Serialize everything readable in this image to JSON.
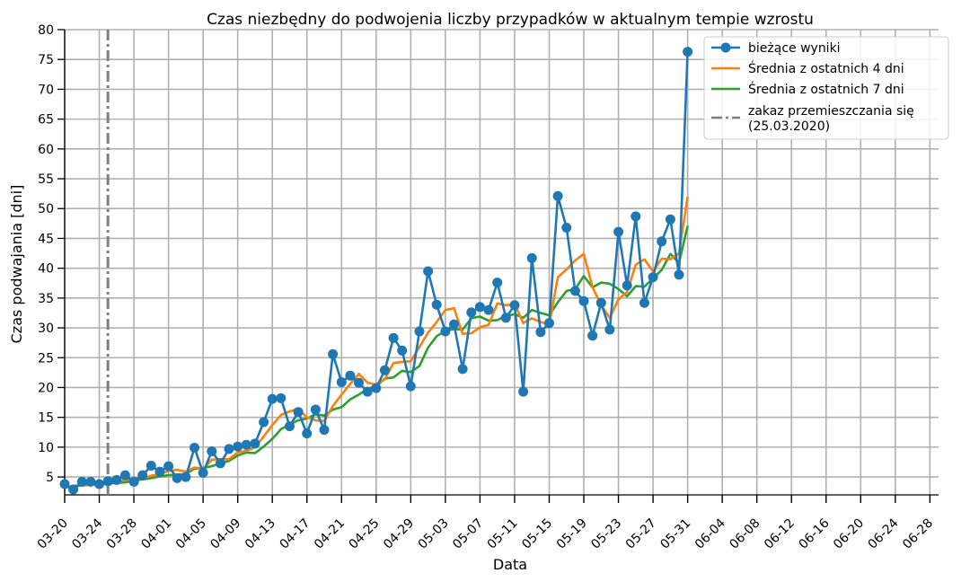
{
  "chart_data": {
    "type": "line",
    "title": "Czas niezbędny do podwojenia liczby przypadków w aktualnym tempie wzrostu",
    "xlabel": "Data",
    "ylabel": "Czas podwajania [dni]",
    "xlim": [
      "2020-03-20",
      "2020-06-29"
    ],
    "ylim": [
      2,
      80
    ],
    "yticks": [
      5,
      10,
      15,
      20,
      25,
      30,
      35,
      40,
      45,
      50,
      55,
      60,
      65,
      70,
      75,
      80
    ],
    "xtick_labels": [
      "03-20",
      "03-24",
      "03-28",
      "04-01",
      "04-05",
      "04-09",
      "04-13",
      "04-17",
      "04-21",
      "04-25",
      "04-29",
      "05-03",
      "05-07",
      "05-11",
      "05-15",
      "05-19",
      "05-23",
      "05-27",
      "05-31",
      "06-04",
      "06-08",
      "06-12",
      "06-16",
      "06-20",
      "06-24",
      "06-28"
    ],
    "grid": true,
    "legend_position": "top-right",
    "x_dates": [
      "2020-03-20",
      "2020-03-21",
      "2020-03-22",
      "2020-03-23",
      "2020-03-24",
      "2020-03-25",
      "2020-03-26",
      "2020-03-27",
      "2020-03-28",
      "2020-03-29",
      "2020-03-30",
      "2020-03-31",
      "2020-04-01",
      "2020-04-02",
      "2020-04-03",
      "2020-04-04",
      "2020-04-05",
      "2020-04-06",
      "2020-04-07",
      "2020-04-08",
      "2020-04-09",
      "2020-04-10",
      "2020-04-11",
      "2020-04-12",
      "2020-04-13",
      "2020-04-14",
      "2020-04-15",
      "2020-04-16",
      "2020-04-17",
      "2020-04-18",
      "2020-04-19",
      "2020-04-20",
      "2020-04-21",
      "2020-04-22",
      "2020-04-23",
      "2020-04-24",
      "2020-04-25",
      "2020-04-26",
      "2020-04-27",
      "2020-04-28",
      "2020-04-29",
      "2020-04-30",
      "2020-05-01",
      "2020-05-02",
      "2020-05-03",
      "2020-05-04",
      "2020-05-05",
      "2020-05-06",
      "2020-05-07",
      "2020-05-08",
      "2020-05-09",
      "2020-05-10",
      "2020-05-11",
      "2020-05-12",
      "2020-05-13",
      "2020-05-14",
      "2020-05-15",
      "2020-05-16",
      "2020-05-17",
      "2020-05-18",
      "2020-05-19",
      "2020-05-20",
      "2020-05-21",
      "2020-05-22",
      "2020-05-23",
      "2020-05-24",
      "2020-05-25",
      "2020-05-26",
      "2020-05-27",
      "2020-05-28",
      "2020-05-29",
      "2020-05-30",
      "2020-05-31"
    ],
    "series": [
      {
        "name": "bieżące wyniki",
        "color": "#1f77b4",
        "marker": "circle",
        "values": [
          3.8,
          2.9,
          4.2,
          4.2,
          3.8,
          4.3,
          4.5,
          5.3,
          4.2,
          5.3,
          6.9,
          5.9,
          6.8,
          4.8,
          5.0,
          9.9,
          5.7,
          9.3,
          7.3,
          9.7,
          10.1,
          10.4,
          10.6,
          14.2,
          18.1,
          18.2,
          13.5,
          15.9,
          12.3,
          16.3,
          12.9,
          25.6,
          20.9,
          22.0,
          20.8,
          19.3,
          19.9,
          22.9,
          28.3,
          26.2,
          20.2,
          29.4,
          39.5,
          33.9,
          29.4,
          30.6,
          23.1,
          32.6,
          33.5,
          33.0,
          37.6,
          31.7,
          33.8,
          19.3,
          41.7,
          29.3,
          30.8,
          52.1,
          46.8,
          36.2,
          34.5,
          28.7,
          34.2,
          29.7,
          46.1,
          37.1,
          48.7,
          34.2,
          38.5,
          44.5,
          48.2,
          38.9,
          76.3
        ]
      },
      {
        "name": "Średnia z ostatnich 4 dni",
        "color": "#ff7f0e",
        "values": [
          3.3,
          3.5,
          3.7,
          3.8,
          4.0,
          4.1,
          4.2,
          4.5,
          4.6,
          4.8,
          5.2,
          5.5,
          6.0,
          6.2,
          5.9,
          6.6,
          6.3,
          7.9,
          8.0,
          8.0,
          9.1,
          9.4,
          10.0,
          11.8,
          13.7,
          15.4,
          16.0,
          16.4,
          15.0,
          14.5,
          14.4,
          16.9,
          18.8,
          20.6,
          22.3,
          20.8,
          20.5,
          21.4,
          24.1,
          24.3,
          24.4,
          26.8,
          29.2,
          31.0,
          33.0,
          33.3,
          29.0,
          29.1,
          30.1,
          30.5,
          34.1,
          33.8,
          34.0,
          30.8,
          31.6,
          31.0,
          30.5,
          38.5,
          39.8,
          41.3,
          42.4,
          36.8,
          33.8,
          31.7,
          34.8,
          36.0,
          40.6,
          41.5,
          39.5,
          41.6,
          41.5,
          42.5,
          52.0
        ]
      },
      {
        "name": "Średnia z ostatnich 7 dni",
        "color": "#2ca02c",
        "values": [
          3.3,
          3.4,
          3.6,
          3.7,
          3.8,
          3.9,
          4.0,
          4.1,
          4.4,
          4.6,
          4.8,
          5.1,
          5.3,
          5.4,
          5.5,
          6.4,
          6.5,
          6.8,
          7.3,
          7.7,
          8.6,
          9.1,
          9.0,
          10.1,
          11.4,
          13.0,
          13.8,
          14.5,
          14.8,
          15.5,
          15.3,
          16.3,
          16.7,
          18.0,
          18.8,
          19.8,
          20.2,
          21.5,
          21.7,
          22.8,
          22.6,
          23.6,
          26.7,
          28.6,
          29.5,
          29.8,
          29.7,
          31.6,
          31.9,
          31.2,
          31.3,
          32.0,
          32.3,
          31.7,
          33.0,
          32.5,
          32.1,
          34.3,
          36.2,
          36.5,
          38.7,
          36.8,
          37.6,
          37.4,
          36.5,
          35.3,
          37.0,
          36.9,
          38.3,
          39.7,
          42.4,
          40.9,
          47.1
        ]
      }
    ],
    "annotations": [
      {
        "type": "vline",
        "x": "2020-03-25",
        "label": "zakaz przemieszczania się\n(25.03.2020)",
        "color": "#7f7f7f",
        "style": "dashdot"
      }
    ]
  }
}
